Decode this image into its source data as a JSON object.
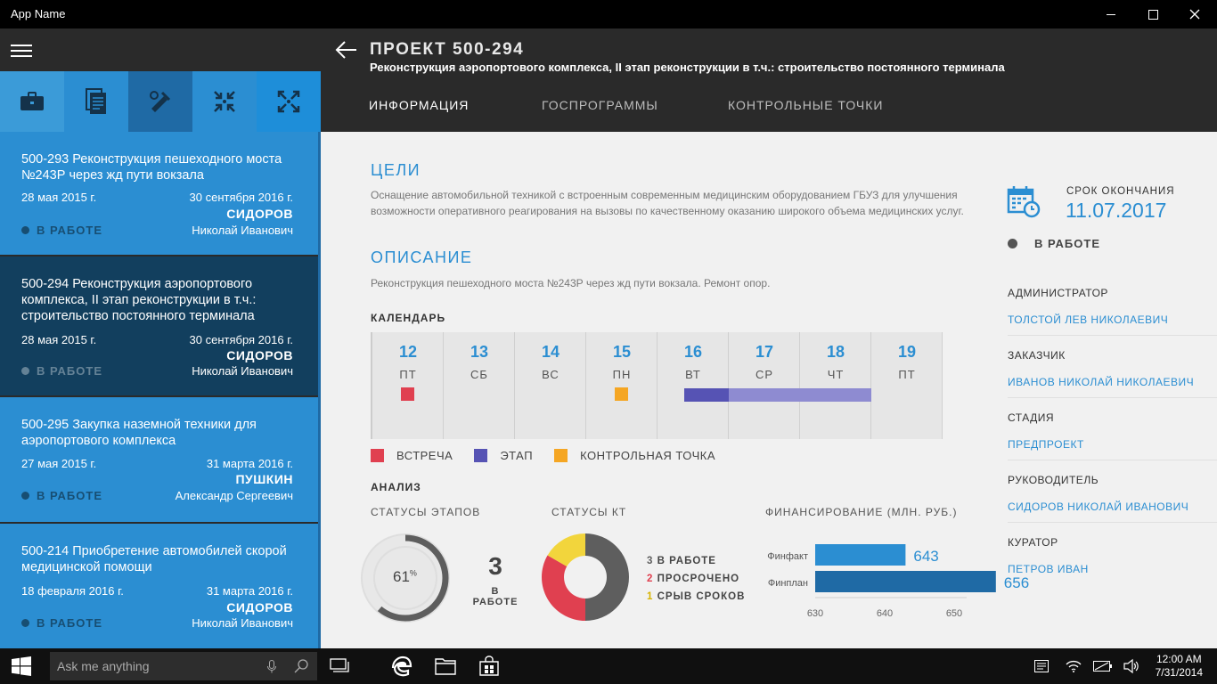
{
  "window": {
    "title": "App Name"
  },
  "sidebar": {
    "filters": [
      {
        "icon": "briefcase-icon"
      },
      {
        "icon": "documents-icon"
      },
      {
        "icon": "tools-icon"
      },
      {
        "icon": "collapse-icon"
      },
      {
        "icon": "expand-icon"
      }
    ],
    "projects": [
      {
        "title": "500-293 Реконструкция пешеходного моста №243Р через жд пути вокзала",
        "start": "28 мая 2015 г.",
        "end": "30 сентября 2016 г.",
        "manager_last": "СИДОРОВ",
        "manager_name": "Николай Иванович",
        "status": "В РАБОТЕ"
      },
      {
        "title": "500-294 Реконструкция аэропортового комплекса, II этап реконструкции в т.ч.: строительство постоянного терминала",
        "start": "28 мая 2015 г.",
        "end": "30 сентября 2016 г.",
        "manager_last": "СИДОРОВ",
        "manager_name": "Николай Иванович",
        "status": "В РАБОТЕ"
      },
      {
        "title": "500-295 Закупка наземной техники для аэропортового комплекса",
        "start": "27 мая 2015 г.",
        "end": "31 марта 2016 г.",
        "manager_last": "ПУШКИН",
        "manager_name": "Александр Сергеевич",
        "status": "В РАБОТЕ"
      },
      {
        "title": "500-214 Приобретение автомобилей скорой медицинской помощи",
        "start": "18 февраля 2016 г.",
        "end": "31 марта 2016 г.",
        "manager_last": "СИДОРОВ",
        "manager_name": "Николай Иванович",
        "status": "В РАБОТЕ"
      }
    ]
  },
  "header": {
    "code": "ПРОЕКТ 500-294",
    "name": "Реконструкция аэропортового комплекса, II этап реконструкции в т.ч.: строительство постоянного терминала",
    "tabs": [
      "ИНФОРМАЦИЯ",
      "ГОСПРОГРАММЫ",
      "КОНТРОЛЬНЫЕ ТОЧКИ"
    ]
  },
  "info": {
    "goals_title": "ЦЕЛИ",
    "goals_text": "Оснащение автомобильной техникой с встроенным современным медицинским оборудованием ГБУЗ для улучшения возможности оперативного реагирования на вызовы по качественному оказанию широкого объема медицинских услуг.",
    "desc_title": "ОПИСАНИЕ",
    "desc_text": "Реконструкция пешеходного моста №243Р через жд пути вокзала. Ремонт опор.",
    "calendar_title": "КАЛЕНДАРЬ",
    "calendar": [
      {
        "day": "12",
        "dow": "ПТ"
      },
      {
        "day": "13",
        "dow": "СБ"
      },
      {
        "day": "14",
        "dow": "ВС"
      },
      {
        "day": "15",
        "dow": "ПН"
      },
      {
        "day": "16",
        "dow": "ВТ"
      },
      {
        "day": "17",
        "dow": "СР"
      },
      {
        "day": "18",
        "dow": "ЧТ"
      },
      {
        "day": "19",
        "dow": "ПТ"
      }
    ],
    "legend": {
      "meeting": "ВСТРЕЧА",
      "stage": "ЭТАП",
      "checkpoint": "КОНТРОЛЬНАЯ ТОЧКА"
    },
    "colors": {
      "meeting": "#e04050",
      "stage": "#5653b4",
      "stage_light": "#8e8bd1",
      "checkpoint": "#f5a623",
      "accent": "#2b8ed2"
    },
    "analysis_title": "АНАЛИЗ",
    "stage_status_label": "СТАТУСЫ ЭТАПОВ",
    "kt_status_label": "СТАТУСЫ КТ",
    "finance_label": "ФИНАНСИРОВАНИЕ (МЛН. РУБ.)",
    "stage_percent": "61",
    "stage_percent_sign": "%",
    "stage_fraction": 0.61,
    "in_work_count": "3",
    "in_work_label": "В РАБОТЕ",
    "kt_legend": [
      {
        "count": "3",
        "label": " В РАБОТЕ"
      },
      {
        "count": "2",
        "label": " ПРОСРОЧЕНО"
      },
      {
        "count": "1",
        "label": " СРЫВ СРОКОВ"
      }
    ]
  },
  "chart_data": {
    "type": "bar",
    "orientation": "horizontal",
    "title": "ФИНАНСИРОВАНИЕ (МЛН. РУБ.)",
    "categories": [
      "Финфакт",
      "Финплан"
    ],
    "values": [
      643,
      656
    ],
    "value_labels": [
      "643",
      "656"
    ],
    "xlim": [
      630,
      656
    ],
    "xticks": [
      "630",
      "640",
      "650"
    ],
    "colors": [
      "#2b8ed2",
      "#1f6aa5"
    ]
  },
  "kt_chart": {
    "type": "pie",
    "values": [
      3,
      2,
      1
    ],
    "colors": [
      "#5e5e5e",
      "#e04050",
      "#f2d53c"
    ]
  },
  "right_panel": {
    "deadline_label": "СРОК ОКОНЧАНИЯ",
    "deadline_value": "11.07.2017",
    "status": "В РАБОТЕ",
    "admin_label": "АДМИНИСТРАТОР",
    "admin_value": "ТОЛСТОЙ ЛЕВ НИКОЛАЕВИЧ",
    "customer_label": "ЗАКАЗЧИК",
    "customer_value": "ИВАНОВ НИКОЛАЙ НИКОЛАЕВИЧ",
    "stage_label": "СТАДИЯ",
    "stage_value": "ПРЕДПРОЕКТ",
    "manager_label": "РУКОВОДИТЕЛЬ",
    "manager_value": "СИДОРОВ НИКОЛАЙ ИВАНОВИЧ",
    "curator_label": "КУРАТОР",
    "curator_value": "ПЕТРОВ ИВАН"
  },
  "taskbar": {
    "search_placeholder": "Ask me anything",
    "time": "12:00 AM",
    "date": "7/31/2014"
  }
}
